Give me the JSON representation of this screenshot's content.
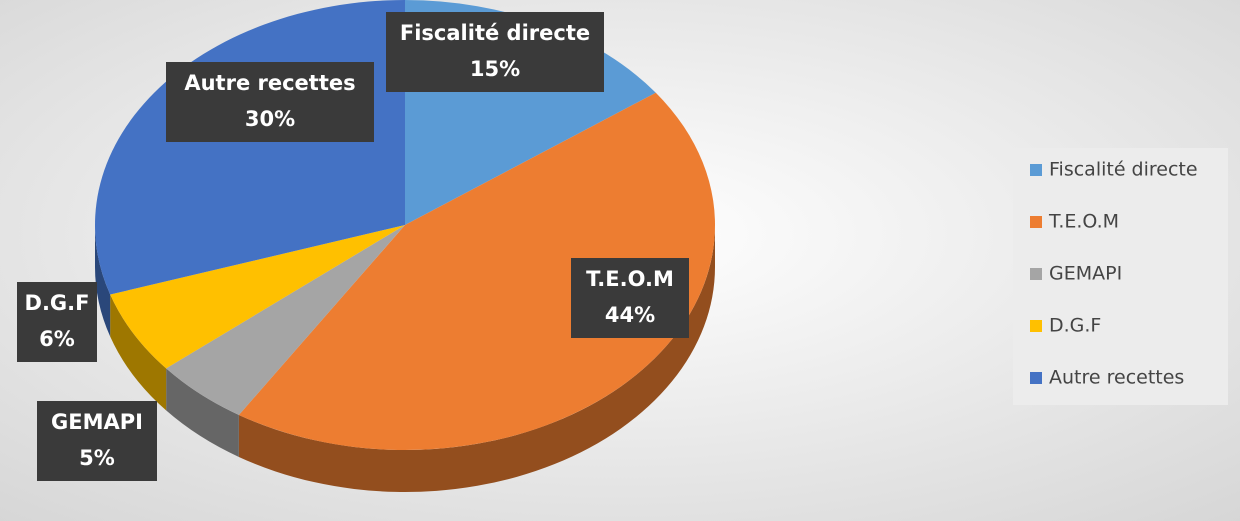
{
  "chart_data": {
    "type": "pie",
    "categories": [
      "Fiscalité directe",
      "T.E.O.M",
      "GEMAPI",
      "D.G.F",
      "Autre recettes"
    ],
    "values": [
      15,
      44,
      5,
      6,
      30
    ],
    "value_labels": [
      "15%",
      "44%",
      "5%",
      "6%",
      "30%"
    ],
    "colors": [
      "#5b9bd5",
      "#ed7d31",
      "#a5a5a5",
      "#ffc000",
      "#4472c4"
    ],
    "legend": "right"
  }
}
